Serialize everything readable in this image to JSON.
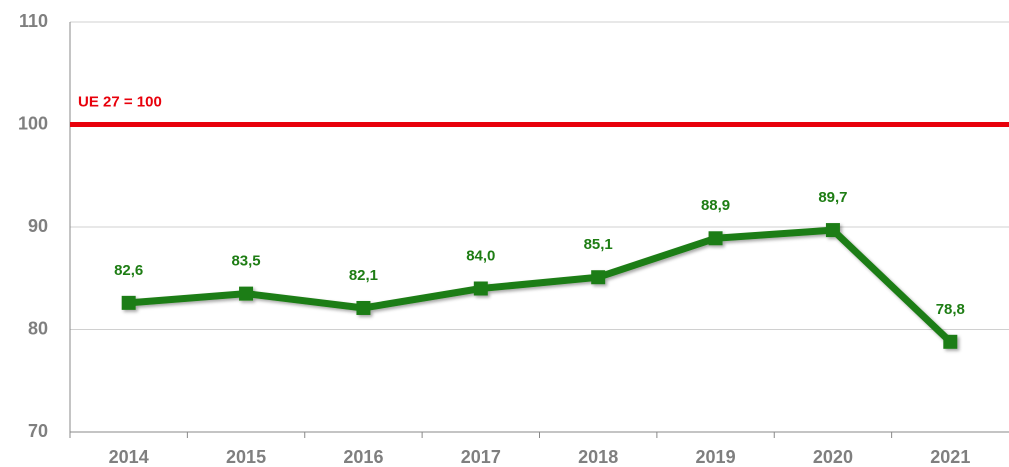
{
  "chart_data": {
    "type": "line",
    "categories": [
      "2014",
      "2015",
      "2016",
      "2017",
      "2018",
      "2019",
      "2020",
      "2021"
    ],
    "series": [
      {
        "color": "#1e7d14",
        "values": [
          82.6,
          83.5,
          82.1,
          84.0,
          85.1,
          88.9,
          89.7,
          78.8
        ],
        "value_labels": [
          "82,6",
          "83,5",
          "82,1",
          "84,0",
          "85,1",
          "88,9",
          "89,7",
          "78,8"
        ]
      }
    ],
    "ylim": [
      70,
      110
    ],
    "yticks": [
      70,
      80,
      90,
      100,
      110
    ],
    "grid": true,
    "reference": {
      "value": 100,
      "label": "UE 27 = 100",
      "color": "#e8000b"
    }
  }
}
